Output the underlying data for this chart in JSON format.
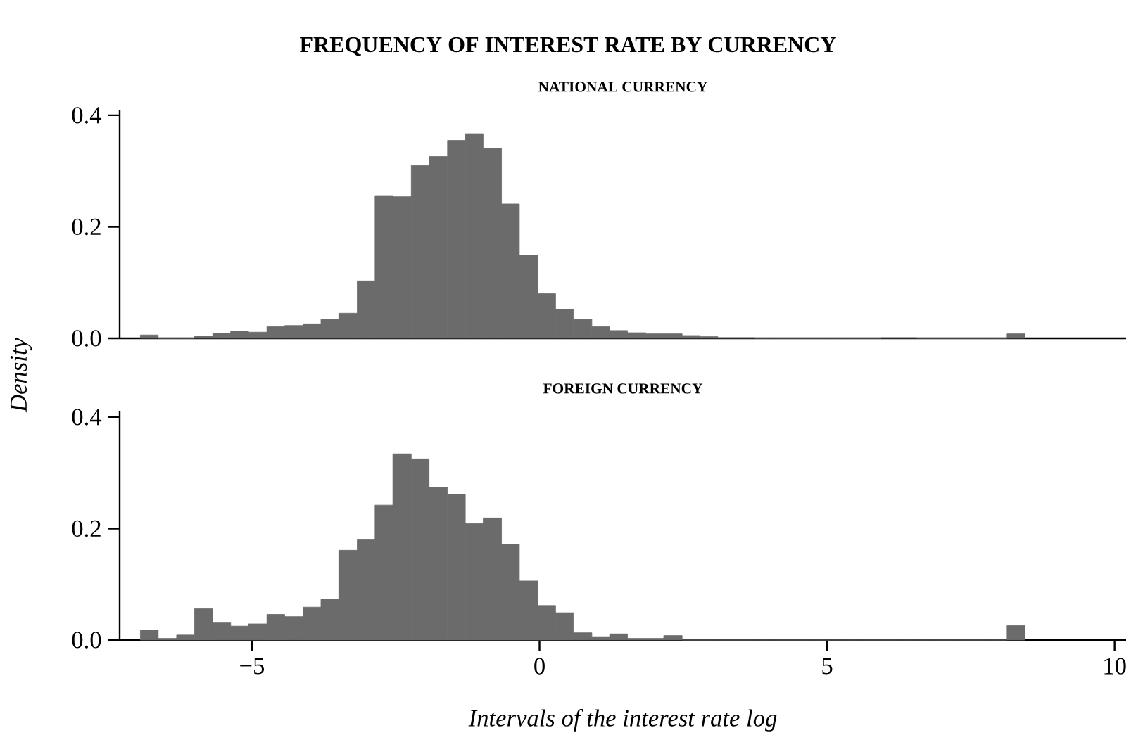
{
  "chart_data": [
    {
      "type": "histogram",
      "title": "FREQUENCY OF INTEREST RATE BY CURRENCY",
      "subtitle": "NATIONAL CURRENCY",
      "ylabel": "Density",
      "color": "#6b6b6b",
      "tick_labels": "y",
      "bins": [
        -6.94,
        -6.63,
        -6.31,
        -6.0,
        -5.68,
        -5.37,
        -5.06,
        -4.74,
        -4.43,
        -4.11,
        -3.8,
        -3.49,
        -3.17,
        -2.86,
        -2.55,
        -2.23,
        -1.92,
        -1.6,
        -1.29,
        -0.98,
        -0.66,
        -0.35,
        -0.03,
        0.28,
        0.59,
        0.91,
        1.22,
        1.53,
        1.85,
        2.16,
        2.48,
        2.79,
        3.1,
        3.42,
        3.73,
        4.05,
        4.36,
        4.67,
        4.99,
        5.3,
        5.62,
        5.93,
        6.24,
        6.56,
        6.87,
        7.19,
        7.5,
        7.81,
        8.13,
        8.44
      ],
      "values": [
        0.006,
        0,
        0,
        0.004,
        0.009,
        0.013,
        0.011,
        0.021,
        0.023,
        0.026,
        0.034,
        0.045,
        0.103,
        0.256,
        0.254,
        0.31,
        0.326,
        0.355,
        0.367,
        0.341,
        0.241,
        0.149,
        0.08,
        0.052,
        0.034,
        0.021,
        0.014,
        0.01,
        0.008,
        0.008,
        0.005,
        0.003,
        0.001,
        0.001,
        0,
        0,
        0,
        0,
        0,
        0,
        0,
        0.001,
        0.001,
        0,
        0,
        0,
        0,
        0,
        0.008
      ],
      "xlim": [
        -7.3,
        10.2
      ],
      "ylim": [
        0,
        0.41
      ],
      "yticks": [
        {
          "value": 0,
          "label": "0.0"
        },
        {
          "value": 0.2,
          "label": "0.2"
        },
        {
          "value": 0.4,
          "label": "0.4"
        }
      ]
    },
    {
      "type": "histogram",
      "subtitle": "FOREIGN CURRENCY",
      "xlabel": "Intervals of the interest rate log",
      "color": "#6b6b6b",
      "bins": [
        -6.94,
        -6.63,
        -6.31,
        -6.0,
        -5.68,
        -5.37,
        -5.06,
        -4.74,
        -4.43,
        -4.11,
        -3.8,
        -3.49,
        -3.17,
        -2.86,
        -2.55,
        -2.23,
        -1.92,
        -1.6,
        -1.29,
        -0.98,
        -0.66,
        -0.35,
        -0.03,
        0.28,
        0.59,
        0.91,
        1.22,
        1.53,
        1.85,
        2.16,
        2.48,
        2.79,
        3.1,
        3.42,
        3.73,
        4.05,
        4.36,
        4.67,
        4.99,
        5.3,
        5.62,
        5.93,
        6.24,
        6.56,
        6.87,
        7.19,
        7.5,
        7.81,
        8.13,
        8.44
      ],
      "values": [
        0.018,
        0.003,
        0.009,
        0.056,
        0.032,
        0.025,
        0.029,
        0.046,
        0.042,
        0.059,
        0.073,
        0.161,
        0.181,
        0.242,
        0.334,
        0.325,
        0.274,
        0.261,
        0.209,
        0.219,
        0.172,
        0.106,
        0.062,
        0.049,
        0.013,
        0.006,
        0.011,
        0.003,
        0.003,
        0.008,
        0,
        0,
        0,
        0,
        0,
        0,
        0,
        0,
        0,
        0,
        0,
        0,
        0,
        0,
        0,
        0,
        0,
        0,
        0.026
      ],
      "xlim": [
        -7.3,
        10.2
      ],
      "ylim": [
        0,
        0.41
      ],
      "xticks": [
        {
          "value": -5,
          "label": "−5"
        },
        0,
        5,
        10
      ],
      "yticks": [
        {
          "value": 0,
          "label": "0.0"
        },
        {
          "value": 0.2,
          "label": "0.2"
        },
        {
          "value": 0.4,
          "label": "0.4"
        }
      ]
    }
  ]
}
